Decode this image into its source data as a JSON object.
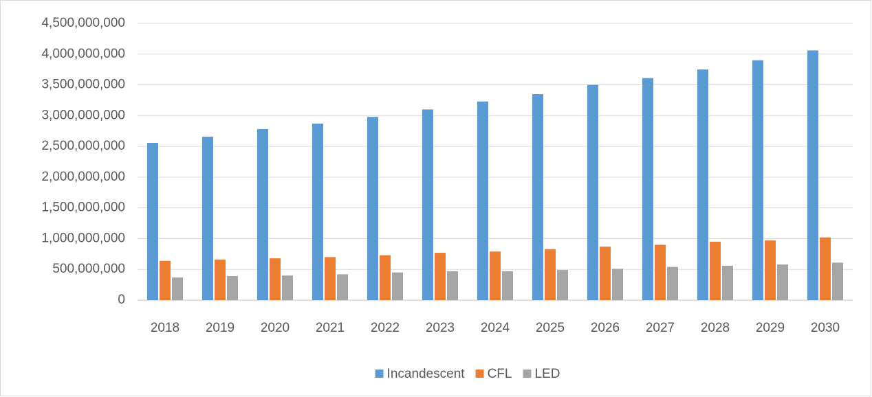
{
  "chart_data": {
    "type": "bar",
    "categories": [
      "2018",
      "2019",
      "2020",
      "2021",
      "2022",
      "2023",
      "2024",
      "2025",
      "2026",
      "2027",
      "2028",
      "2029",
      "2030"
    ],
    "series": [
      {
        "name": "Incandescent",
        "color": "#5b9bd5",
        "values": [
          2557000000,
          2657000000,
          2780000000,
          2870000000,
          2980000000,
          3100000000,
          3230000000,
          3350000000,
          3500000000,
          3610000000,
          3750000000,
          3900000000,
          4060000000
        ]
      },
      {
        "name": "CFL",
        "color": "#ed7d31",
        "values": [
          640000000,
          660000000,
          680000000,
          700000000,
          730000000,
          770000000,
          790000000,
          830000000,
          870000000,
          900000000,
          950000000,
          970000000,
          1020000000
        ]
      },
      {
        "name": "LED",
        "color": "#a5a5a5",
        "values": [
          370000000,
          390000000,
          400000000,
          420000000,
          450000000,
          470000000,
          470000000,
          490000000,
          510000000,
          540000000,
          560000000,
          580000000,
          610000000
        ]
      }
    ],
    "ylim": [
      0,
      4500000000
    ],
    "yticks": [
      0,
      {
        "value": 500000000,
        "label": "500,000,000"
      },
      {
        "value": 1000000000,
        "label": "1,000,000,000"
      },
      {
        "value": 1500000000,
        "label": "1,500,000,000"
      },
      {
        "value": 2000000000,
        "label": "2,000,000,000"
      },
      {
        "value": 2500000000,
        "label": "2,500,000,000"
      },
      {
        "value": 3000000000,
        "label": "3,000,000,000"
      },
      {
        "value": 3500000000,
        "label": "3,500,000,000"
      },
      {
        "value": 4000000000,
        "label": "4,000,000,000"
      },
      {
        "value": 4500000000,
        "label": "4,500,000,000"
      }
    ],
    "grid": true,
    "legend": "bottom"
  }
}
